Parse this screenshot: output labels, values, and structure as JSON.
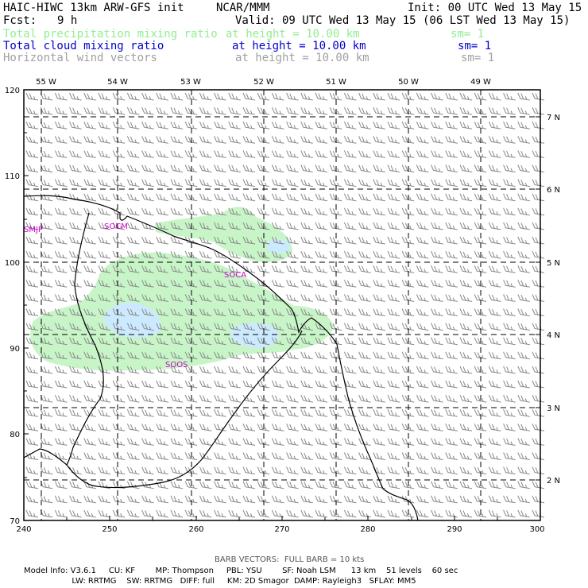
{
  "header": {
    "model": "HAIC-HIWC 13km ARW-GFS init",
    "org": "NCAR/MMM",
    "init": "Init: 00 UTC Wed 13 May 15",
    "fcst_label": "Fcst:",
    "fcst_value": "9 h",
    "valid": "Valid: 09 UTC Wed 13 May 15 (06 LST Wed 13 May 15)",
    "fields": [
      {
        "name": "Total precipitation mixing ratio",
        "height": "at height = 10.00 km",
        "sm": "sm= 1",
        "color": "#90ee90"
      },
      {
        "name": "Total cloud mixing ratio",
        "height": "at height = 10.00 km",
        "sm": "sm= 1",
        "color": "#0000cd"
      },
      {
        "name": "Horizontal wind vectors",
        "height": "at height = 10.00 km",
        "sm": "sm= 1",
        "color": "#a0a0a0"
      }
    ]
  },
  "map": {
    "top_lon_labels": [
      "55 W",
      "54 W",
      "53 W",
      "52 W",
      "51 W",
      "50 W",
      "49 W"
    ],
    "right_lat_labels": [
      "7 N",
      "6 N",
      "5 N",
      "4 N",
      "3 N",
      "2 N"
    ],
    "x_ticks": [
      "240",
      "250",
      "260",
      "270",
      "280",
      "290",
      "300"
    ],
    "y_ticks": [
      "70",
      "80",
      "90",
      "100",
      "110",
      "120"
    ],
    "stations": [
      "SMJP",
      "SOCM",
      "SOCA",
      "SOOS"
    ],
    "precip_color": "#c8f5c8",
    "cloud_color": "#cceaff",
    "coast_color": "#000000",
    "barb_color": "#888888",
    "station_color": "#cc00cc"
  },
  "footer": {
    "barb_note": "BARB VECTORS:  FULL BARB = 10 kts",
    "line1": "Model Info: V3.6.1     CU: KF        MP: Thompson     PBL: YSU        SF: Noah LSM      13 km    51 levels    60 sec",
    "line2": "                   LW: RRTMG    SW: RRTMG   DIFF: full     KM: 2D Smagor  DAMP: Rayleigh3   SFLAY: MM5"
  }
}
